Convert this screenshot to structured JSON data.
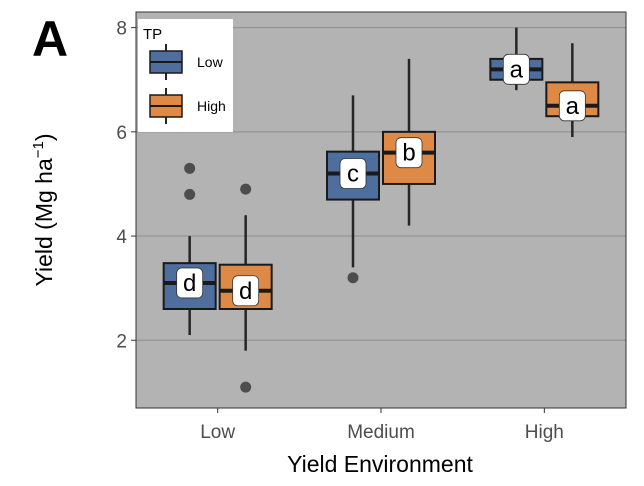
{
  "panel_letter": "A",
  "chart_data": {
    "type": "boxplot",
    "xlabel": "Yield Environment",
    "ylabel": "Yield (Mg ha",
    "ylabel_sup": "−1",
    "ylabel_close": ")",
    "ylim": [
      0.7,
      8.3
    ],
    "yticks": [
      2,
      4,
      6,
      8
    ],
    "grid": true,
    "categories": [
      "Low",
      "Medium",
      "High"
    ],
    "legend": {
      "title": "TP",
      "placement": "top-left",
      "entries": [
        {
          "name": "Low",
          "color": "#4e6f9e"
        },
        {
          "name": "High",
          "color": "#de8a46"
        }
      ]
    },
    "series": [
      {
        "name": "Low",
        "color": "#4e6f9e",
        "boxes": [
          {
            "category": "Low",
            "whisker_low": 2.1,
            "q1": 2.6,
            "median": 3.1,
            "q3": 3.48,
            "whisker_high": 4.0,
            "outliers": [
              4.8,
              5.3
            ],
            "letter": "d"
          },
          {
            "category": "Medium",
            "whisker_low": 3.4,
            "q1": 4.7,
            "median": 5.2,
            "q3": 5.62,
            "whisker_high": 6.7,
            "outliers": [
              3.2
            ],
            "letter": "c"
          },
          {
            "category": "High",
            "whisker_low": 6.8,
            "q1": 7.0,
            "median": 7.2,
            "q3": 7.4,
            "whisker_high": 8.0,
            "outliers": [],
            "letter": "a"
          }
        ]
      },
      {
        "name": "High",
        "color": "#de8a46",
        "boxes": [
          {
            "category": "Low",
            "whisker_low": 1.8,
            "q1": 2.6,
            "median": 2.95,
            "q3": 3.45,
            "whisker_high": 4.4,
            "outliers": [
              4.9,
              1.1
            ],
            "letter": "d"
          },
          {
            "category": "Medium",
            "whisker_low": 4.2,
            "q1": 5.0,
            "median": 5.6,
            "q3": 6.0,
            "whisker_high": 7.4,
            "outliers": [],
            "letter": "b"
          },
          {
            "category": "High",
            "whisker_low": 5.9,
            "q1": 6.3,
            "median": 6.5,
            "q3": 6.95,
            "whisker_high": 7.7,
            "outliers": [],
            "letter": "a"
          }
        ]
      }
    ]
  },
  "colors": {
    "panel_bg": "#b3b3b3",
    "grid": "#8c8c8c",
    "outlier": "#4d4d4d",
    "whisker": "#262626",
    "label_box": "#ffffff"
  }
}
